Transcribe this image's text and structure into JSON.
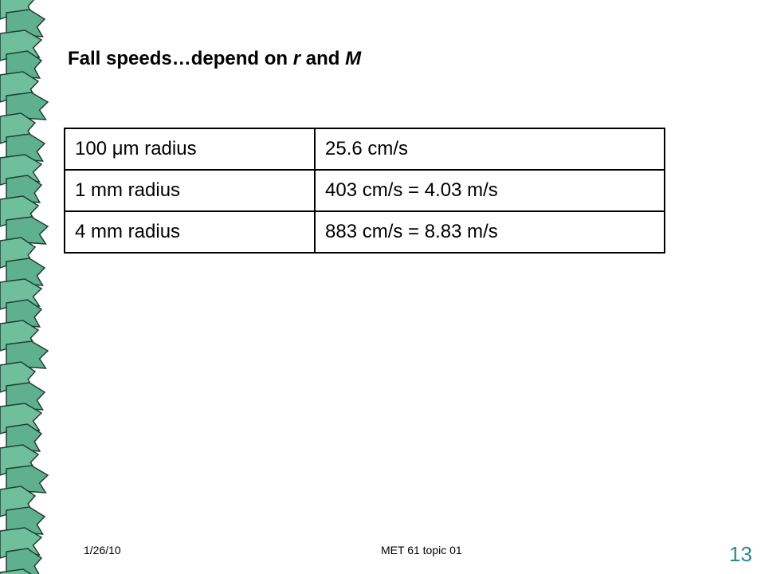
{
  "header": {
    "title": [
      "Fall speeds…depend on ",
      "r",
      " and ",
      "M"
    ]
  },
  "table": {
    "rows": [
      [
        "100 μm radius",
        "25.6 cm/s"
      ],
      [
        "1 mm radius",
        "403 cm/s = 4.03 m/s"
      ],
      [
        "4 mm radius",
        "883 cm/s = 8.83 m/s"
      ]
    ]
  },
  "footer": {
    "date": "1/26/10",
    "topic": "MET 61 topic 01",
    "page": "13"
  }
}
